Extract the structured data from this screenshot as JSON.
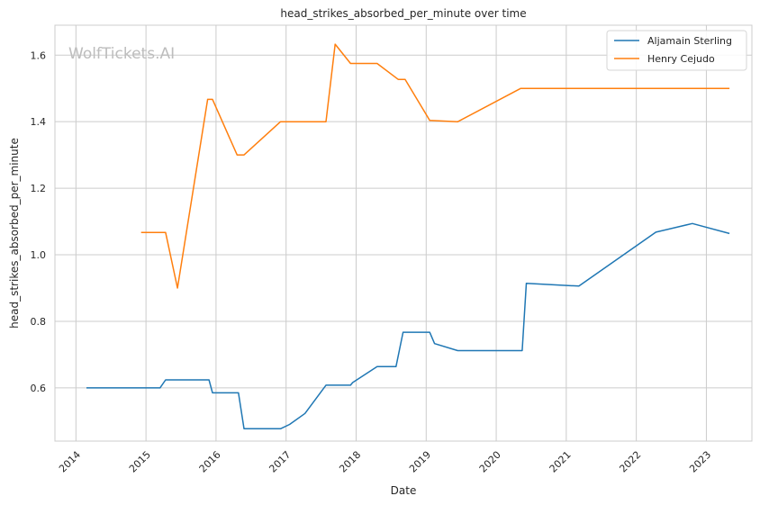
{
  "chart_data": {
    "type": "line",
    "title": "head_strikes_absorbed_per_minute over time",
    "xlabel": "Date",
    "ylabel": "head_strikes_absorbed_per_minute",
    "watermark": "WolfTickets.AI",
    "xlim": [
      2013.7,
      2023.65
    ],
    "ylim": [
      0.44,
      1.69
    ],
    "x_ticks": [
      2014,
      2015,
      2016,
      2017,
      2018,
      2019,
      2020,
      2021,
      2022,
      2023
    ],
    "x_tick_labels": [
      "2014",
      "2015",
      "2016",
      "2017",
      "2018",
      "2019",
      "2020",
      "2021",
      "2022",
      "2023"
    ],
    "y_ticks": [
      0.6,
      0.8,
      1.0,
      1.2,
      1.4,
      1.6
    ],
    "y_tick_labels": [
      "0.6",
      "0.8",
      "1.0",
      "1.2",
      "1.4",
      "1.6"
    ],
    "grid": true,
    "legend_position": "top-right",
    "series": [
      {
        "name": "Aljamain Sterling",
        "color": "#1f77b4",
        "points": [
          [
            2014.15,
            0.6
          ],
          [
            2015.2,
            0.6
          ],
          [
            2015.28,
            0.624
          ],
          [
            2015.9,
            0.624
          ],
          [
            2015.95,
            0.585
          ],
          [
            2016.32,
            0.585
          ],
          [
            2016.4,
            0.477
          ],
          [
            2016.92,
            0.477
          ],
          [
            2017.05,
            0.49
          ],
          [
            2017.27,
            0.523
          ],
          [
            2017.57,
            0.608
          ],
          [
            2017.92,
            0.608
          ],
          [
            2017.95,
            0.616
          ],
          [
            2018.3,
            0.664
          ],
          [
            2018.57,
            0.664
          ],
          [
            2018.67,
            0.767
          ],
          [
            2019.05,
            0.767
          ],
          [
            2019.12,
            0.733
          ],
          [
            2019.45,
            0.712
          ],
          [
            2020.37,
            0.712
          ],
          [
            2020.43,
            0.914
          ],
          [
            2021.18,
            0.906
          ],
          [
            2022.28,
            1.068
          ],
          [
            2022.8,
            1.094
          ],
          [
            2023.33,
            1.064
          ]
        ]
      },
      {
        "name": "Henry Cejudo",
        "color": "#ff7f0e",
        "points": [
          [
            2014.93,
            1.067
          ],
          [
            2015.28,
            1.067
          ],
          [
            2015.45,
            0.9
          ],
          [
            2015.88,
            1.467
          ],
          [
            2015.95,
            1.467
          ],
          [
            2016.3,
            1.3
          ],
          [
            2016.4,
            1.3
          ],
          [
            2016.92,
            1.4
          ],
          [
            2017.57,
            1.4
          ],
          [
            2017.7,
            1.633
          ],
          [
            2017.92,
            1.575
          ],
          [
            2018.3,
            1.575
          ],
          [
            2018.6,
            1.527
          ],
          [
            2018.7,
            1.527
          ],
          [
            2019.05,
            1.404
          ],
          [
            2019.45,
            1.4
          ],
          [
            2020.35,
            1.5
          ],
          [
            2023.33,
            1.5
          ]
        ]
      }
    ]
  }
}
